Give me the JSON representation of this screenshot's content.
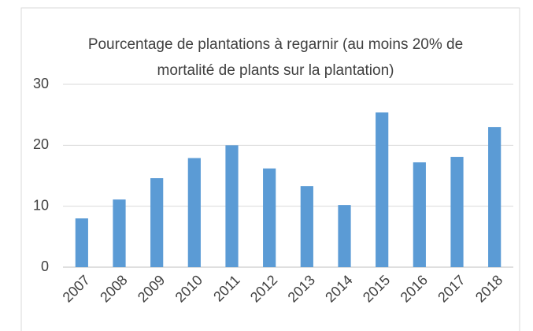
{
  "chart_data": {
    "type": "bar",
    "title": "Pourcentage de plantations à regarnir (au moins 20% de mortalité de plants sur la plantation)",
    "categories": [
      "2007",
      "2008",
      "2009",
      "2010",
      "2011",
      "2012",
      "2013",
      "2014",
      "2015",
      "2016",
      "2017",
      "2018"
    ],
    "values": [
      8.0,
      11.1,
      14.6,
      17.9,
      20.0,
      16.2,
      13.3,
      10.2,
      25.4,
      17.2,
      18.1,
      23.0
    ],
    "color": "#5b9bd5",
    "ylim": [
      0,
      30
    ],
    "yticks": [
      0,
      10,
      20,
      30
    ],
    "grid": true
  }
}
